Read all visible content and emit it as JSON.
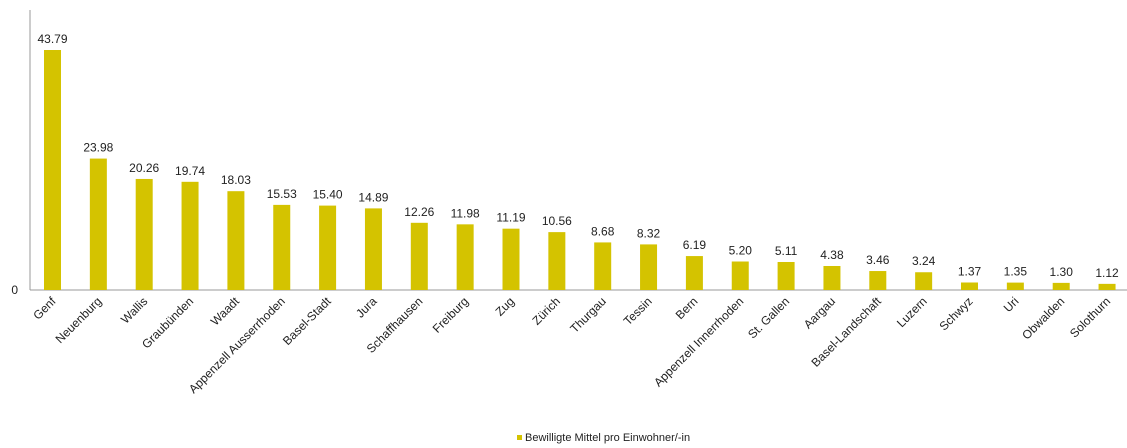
{
  "chart_data": {
    "type": "bar",
    "categories": [
      "Genf",
      "Neuenburg",
      "Wallis",
      "Graubünden",
      "Waadt",
      "Appenzell Ausserrhoden",
      "Basel-Stadt",
      "Jura",
      "Schaffhausen",
      "Freiburg",
      "Zug",
      "Zürich",
      "Thurgau",
      "Tessin",
      "Bern",
      "Appenzell Innerrhoden",
      "St. Gallen",
      "Aargau",
      "Basel-Landschaft",
      "Luzern",
      "Schwyz",
      "Uri",
      "Obwalden",
      "Solothurn"
    ],
    "series": [
      {
        "name": "Bewilligte Mittel pro Einwohner/-in",
        "values": [
          43.79,
          23.98,
          20.26,
          19.74,
          18.03,
          15.53,
          15.4,
          14.89,
          12.26,
          11.98,
          11.19,
          10.56,
          8.68,
          8.32,
          6.19,
          5.2,
          5.11,
          4.38,
          3.46,
          3.24,
          1.37,
          1.35,
          1.3,
          1.12
        ],
        "labels": [
          "43.79",
          "23.98",
          "20.26",
          "19.74",
          "18.03",
          "15.53",
          "15.40",
          "14.89",
          "12.26",
          "11.98",
          "11.19",
          "10.56",
          "8.68",
          "8.32",
          "6.19",
          "5.20",
          "5.11",
          "4.38",
          "3.46",
          "3.24",
          "1.37",
          "1.35",
          "1.30",
          "1.12"
        ]
      }
    ],
    "yticks": [
      "0"
    ],
    "ylim": [
      0,
      43.79
    ],
    "grid": false,
    "legend_position": "bottom-center",
    "colors": {
      "bar": "#d4c300",
      "axis": "#999999"
    }
  },
  "legend": {
    "label": "Bewilligte Mittel pro Einwohner/-in"
  }
}
